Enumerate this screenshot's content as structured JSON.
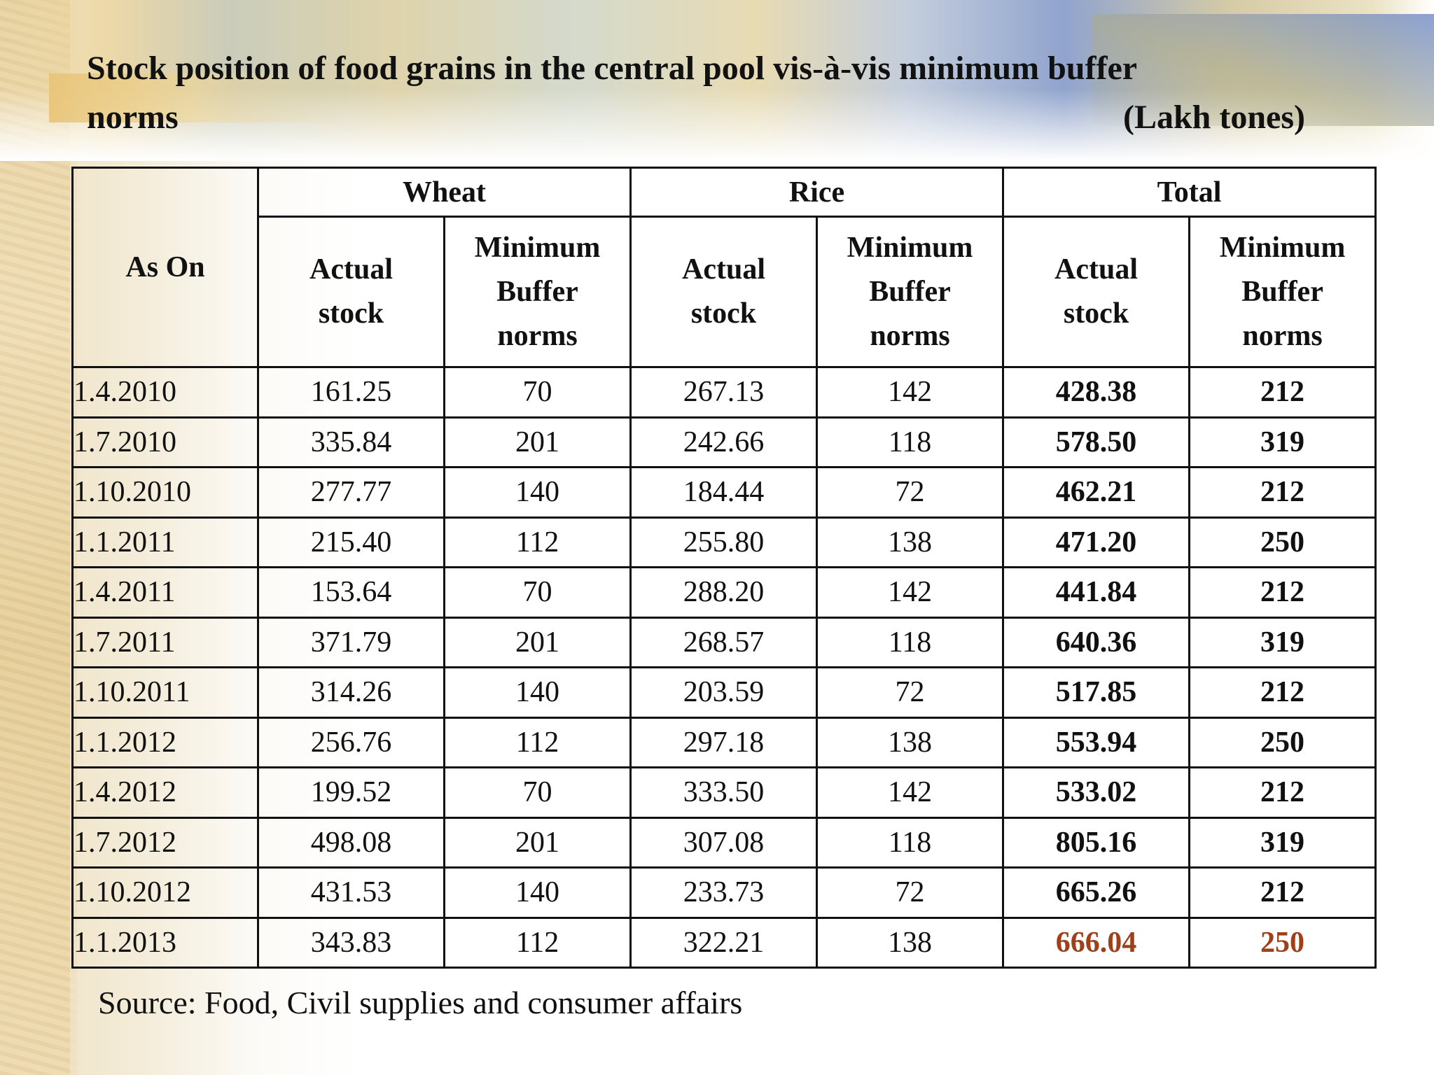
{
  "title": {
    "line1": "Stock position of food grains in the central pool vis-à-vis minimum buffer",
    "line2": "norms",
    "units": "(Lakh tones)"
  },
  "table": {
    "date_header": "As On",
    "groups": [
      "Wheat",
      "Rice",
      "Total"
    ],
    "sub_headers": {
      "actual_line1": "Actual",
      "actual_line2": "stock",
      "norms_line1": "Minimum",
      "norms_line2": "Buffer",
      "norms_line3": "norms"
    },
    "rows": [
      {
        "date": "1.4.2010",
        "wheat_actual": "161.25",
        "wheat_norms": "70",
        "rice_actual": "267.13",
        "rice_norms": "142",
        "total_actual": "428.38",
        "total_norms": "212"
      },
      {
        "date": "1.7.2010",
        "wheat_actual": "335.84",
        "wheat_norms": "201",
        "rice_actual": "242.66",
        "rice_norms": "118",
        "total_actual": "578.50",
        "total_norms": "319"
      },
      {
        "date": "1.10.2010",
        "wheat_actual": "277.77",
        "wheat_norms": "140",
        "rice_actual": "184.44",
        "rice_norms": "72",
        "total_actual": "462.21",
        "total_norms": "212"
      },
      {
        "date": "1.1.2011",
        "wheat_actual": "215.40",
        "wheat_norms": "112",
        "rice_actual": "255.80",
        "rice_norms": "138",
        "total_actual": "471.20",
        "total_norms": "250"
      },
      {
        "date": "1.4.2011",
        "wheat_actual": "153.64",
        "wheat_norms": "70",
        "rice_actual": "288.20",
        "rice_norms": "142",
        "total_actual": "441.84",
        "total_norms": "212"
      },
      {
        "date": "1.7.2011",
        "wheat_actual": "371.79",
        "wheat_norms": "201",
        "rice_actual": "268.57",
        "rice_norms": "118",
        "total_actual": "640.36",
        "total_norms": "319"
      },
      {
        "date": "1.10.2011",
        "wheat_actual": "314.26",
        "wheat_norms": "140",
        "rice_actual": "203.59",
        "rice_norms": "72",
        "total_actual": "517.85",
        "total_norms": "212"
      },
      {
        "date": "1.1.2012",
        "wheat_actual": "256.76",
        "wheat_norms": "112",
        "rice_actual": "297.18",
        "rice_norms": "138",
        "total_actual": "553.94",
        "total_norms": "250"
      },
      {
        "date": "1.4.2012",
        "wheat_actual": "199.52",
        "wheat_norms": "70",
        "rice_actual": "333.50",
        "rice_norms": "142",
        "total_actual": "533.02",
        "total_norms": "212"
      },
      {
        "date": "1.7.2012",
        "wheat_actual": "498.08",
        "wheat_norms": "201",
        "rice_actual": "307.08",
        "rice_norms": "118",
        "total_actual": "805.16",
        "total_norms": "319"
      },
      {
        "date": "1.10.2012",
        "wheat_actual": "431.53",
        "wheat_norms": "140",
        "rice_actual": "233.73",
        "rice_norms": "72",
        "total_actual": "665.26",
        "total_norms": "212"
      },
      {
        "date": "1.1.2013",
        "wheat_actual": "343.83",
        "wheat_norms": "112",
        "rice_actual": "322.21",
        "rice_norms": "138",
        "total_actual": "666.04",
        "total_norms": "250"
      }
    ],
    "highlight_row": 11,
    "highlight_color": "#a0401a"
  },
  "source": "Source:  Food, Civil supplies and consumer affairs"
}
